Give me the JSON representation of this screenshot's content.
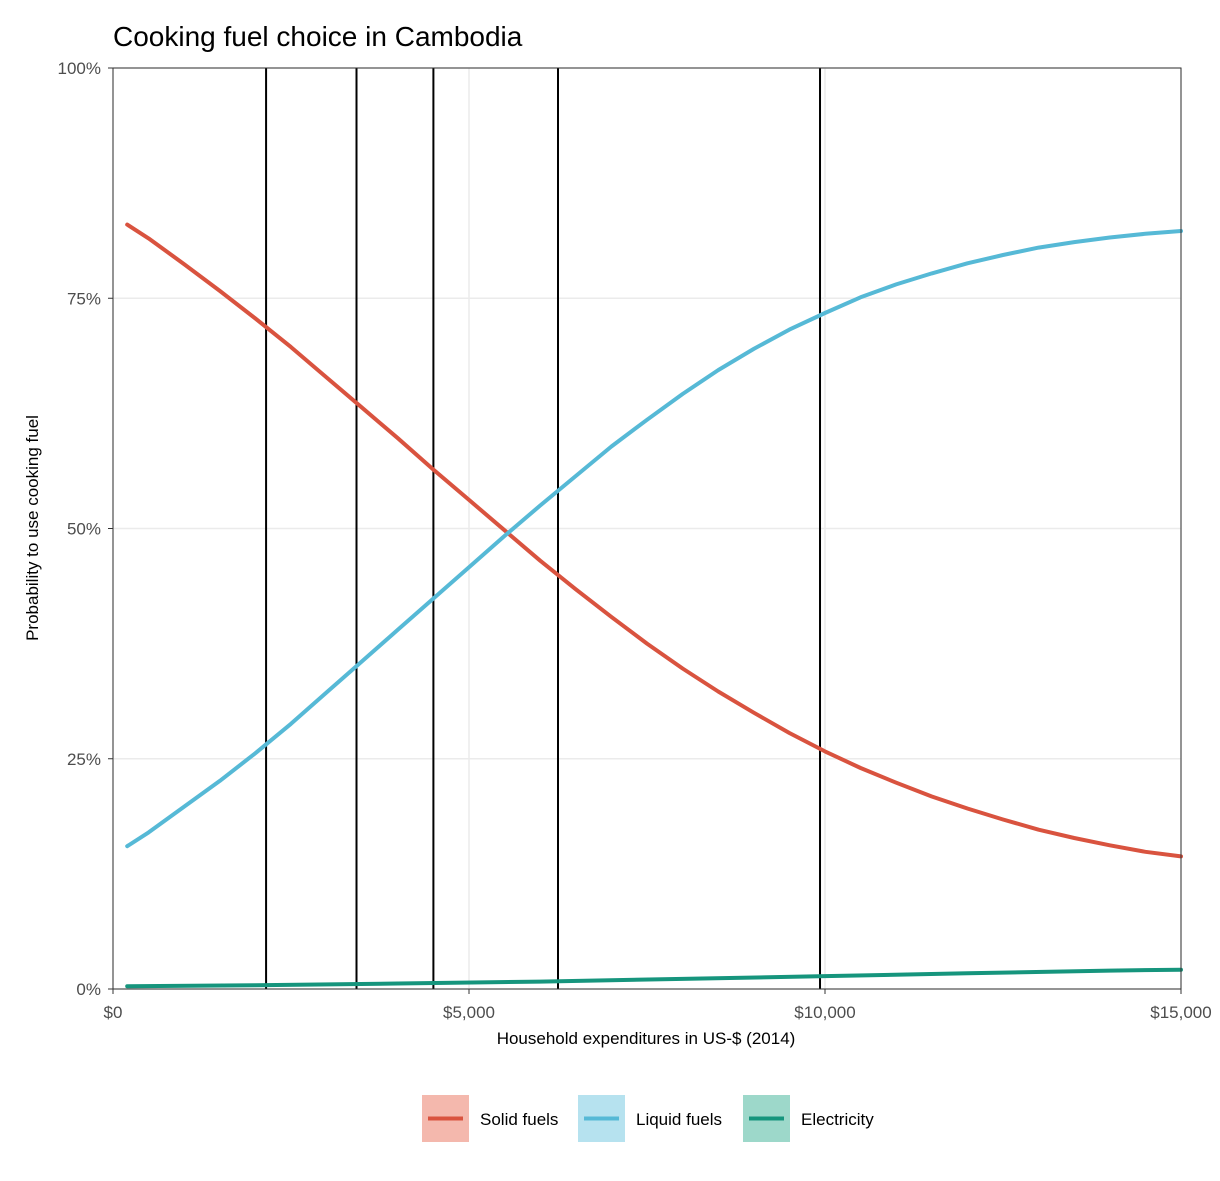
{
  "chart_data": {
    "type": "line",
    "title": "Cooking fuel choice in Cambodia",
    "xlabel": "Household expenditures in US-$ (2014)",
    "ylabel": "Probability to use cooking fuel",
    "xlim": [
      0,
      15000
    ],
    "ylim": [
      0,
      1
    ],
    "x_ticks": [
      0,
      5000,
      10000,
      15000
    ],
    "x_tick_labels": [
      "$0",
      "$5,000",
      "$10,000",
      "$15,000"
    ],
    "y_ticks": [
      0,
      0.25,
      0.5,
      0.75,
      1
    ],
    "y_tick_labels": [
      "0%",
      "25%",
      "50%",
      "75%",
      "100%"
    ],
    "grid": true,
    "legend_position": "bottom",
    "vertical_lines": [
      2150,
      3420,
      4500,
      6250,
      9930
    ],
    "series": [
      {
        "name": "Solid fuels",
        "color": "#d9533f",
        "x": [
          200,
          500,
          1000,
          1500,
          2000,
          2500,
          3000,
          3500,
          4000,
          4500,
          5000,
          5500,
          6000,
          6500,
          7000,
          7500,
          8000,
          8500,
          9000,
          9500,
          10000,
          10500,
          11000,
          11500,
          12000,
          12500,
          13000,
          13500,
          14000,
          14500,
          15000
        ],
        "y": [
          0.83,
          0.815,
          0.787,
          0.758,
          0.728,
          0.697,
          0.664,
          0.631,
          0.598,
          0.564,
          0.531,
          0.498,
          0.465,
          0.434,
          0.404,
          0.375,
          0.348,
          0.323,
          0.3,
          0.278,
          0.258,
          0.24,
          0.224,
          0.209,
          0.196,
          0.184,
          0.173,
          0.164,
          0.156,
          0.149,
          0.144
        ]
      },
      {
        "name": "Liquid fuels",
        "color": "#56b9d6",
        "x": [
          200,
          500,
          1000,
          1500,
          2000,
          2500,
          3000,
          3500,
          4000,
          4500,
          5000,
          5500,
          6000,
          6500,
          7000,
          7500,
          8000,
          8500,
          9000,
          9500,
          10000,
          10500,
          11000,
          11500,
          12000,
          12500,
          13000,
          13500,
          14000,
          14500,
          15000
        ],
        "y": [
          0.155,
          0.17,
          0.198,
          0.226,
          0.256,
          0.288,
          0.322,
          0.356,
          0.39,
          0.424,
          0.458,
          0.492,
          0.525,
          0.557,
          0.589,
          0.618,
          0.646,
          0.672,
          0.695,
          0.716,
          0.734,
          0.751,
          0.765,
          0.777,
          0.788,
          0.797,
          0.805,
          0.811,
          0.816,
          0.82,
          0.823
        ]
      },
      {
        "name": "Electricity",
        "color": "#16957d",
        "x": [
          200,
          2000,
          4000,
          6000,
          8000,
          10000,
          12000,
          14000,
          15000
        ],
        "y": [
          0.003,
          0.004,
          0.006,
          0.008,
          0.011,
          0.014,
          0.017,
          0.02,
          0.021
        ]
      }
    ]
  }
}
